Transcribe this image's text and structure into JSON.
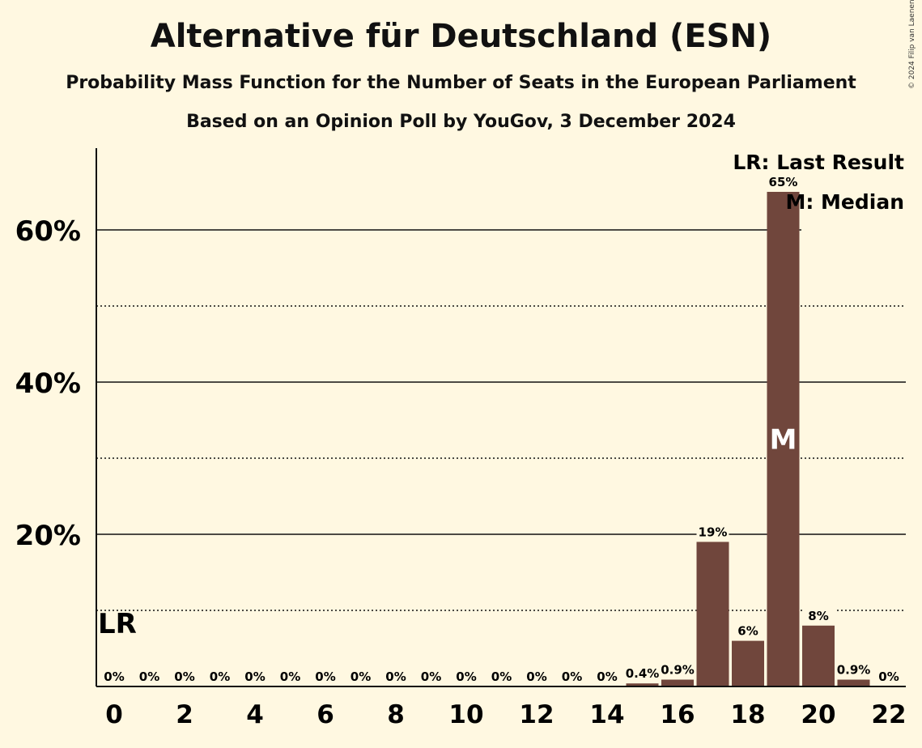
{
  "header": {
    "title": "Alternative für Deutschland (ESN)",
    "subtitle": "Probability Mass Function for the Number of Seats in the European Parliament",
    "subtitle2": "Based on an Opinion Poll by YouGov, 3 December 2024",
    "copyright": "© 2024 Filip van Laenen"
  },
  "legend": {
    "last_result": "LR: Last Result",
    "median": "M: Median"
  },
  "markers": {
    "last_result_label": "LR",
    "last_result_seats": 0,
    "median_label": "M",
    "median_seats": 19
  },
  "colors": {
    "background": "#FFF8E1",
    "bar": "#70463C",
    "text": "#111111"
  },
  "chart_data": {
    "type": "bar",
    "title": "Alternative für Deutschland (ESN)",
    "xlabel": "",
    "ylabel": "",
    "categories": [
      0,
      1,
      2,
      3,
      4,
      5,
      6,
      7,
      8,
      9,
      10,
      11,
      12,
      13,
      14,
      15,
      16,
      17,
      18,
      19,
      20,
      21,
      22
    ],
    "values": [
      0,
      0,
      0,
      0,
      0,
      0,
      0,
      0,
      0,
      0,
      0,
      0,
      0,
      0,
      0,
      0.4,
      0.9,
      19,
      6,
      65,
      8,
      0.9,
      0
    ],
    "value_labels": [
      "0%",
      "0%",
      "0%",
      "0%",
      "0%",
      "0%",
      "0%",
      "0%",
      "0%",
      "0%",
      "0%",
      "0%",
      "0%",
      "0%",
      "0%",
      "0.4%",
      "0.9%",
      "19%",
      "6%",
      "65%",
      "8%",
      "0.9%",
      "0%"
    ],
    "x_tick_labels": [
      "0",
      "2",
      "4",
      "6",
      "8",
      "10",
      "12",
      "14",
      "16",
      "18",
      "20",
      "22"
    ],
    "y_ticks": [
      20,
      40,
      60
    ],
    "y_tick_labels": [
      "20%",
      "40%",
      "60%"
    ],
    "y_minor_ticks": [
      10,
      30,
      50
    ],
    "ylim": [
      0,
      70
    ],
    "legend_position": "top-right",
    "grid": true
  }
}
